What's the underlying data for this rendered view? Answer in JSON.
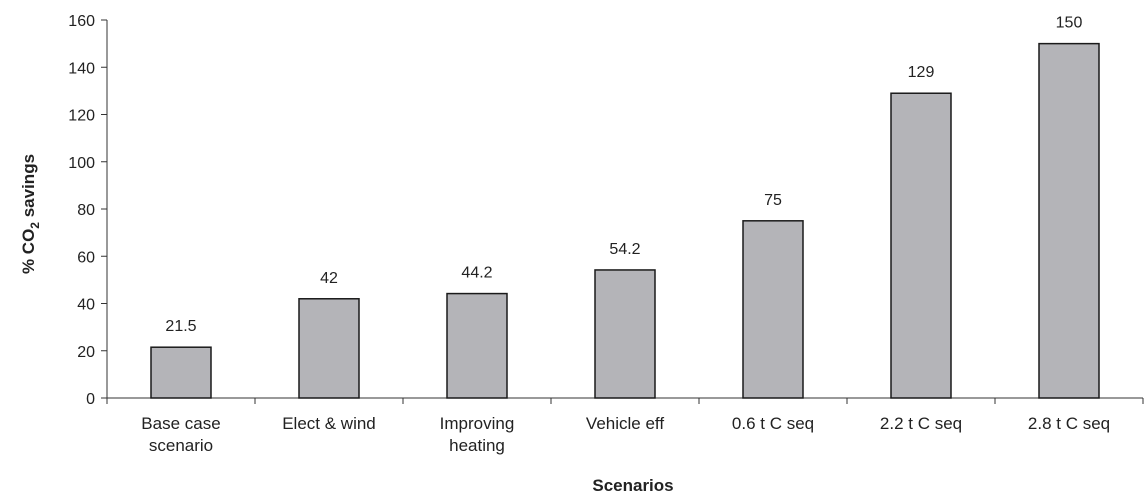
{
  "chart_data": {
    "type": "bar",
    "categories": [
      [
        "Base case",
        "scenario"
      ],
      [
        "Elect & wind"
      ],
      [
        "Improving",
        "heating"
      ],
      [
        "Vehicle eff"
      ],
      [
        "0.6 t C seq"
      ],
      [
        "2.2 t C seq"
      ],
      [
        "2.8 t C seq"
      ]
    ],
    "values": [
      21.5,
      42,
      44.2,
      54.2,
      75,
      129,
      150
    ],
    "value_labels": [
      "21.5",
      "42",
      "44.2",
      "54.2",
      "75",
      "129",
      "150"
    ],
    "title": "",
    "xlabel": "Scenarios",
    "ylabel": {
      "prefix": "% CO",
      "subscript": "2",
      "suffix": " savings"
    },
    "ylim": [
      0,
      160
    ],
    "yticks": [
      0,
      20,
      40,
      60,
      80,
      100,
      120,
      140,
      160
    ],
    "grid": false,
    "legend": "none",
    "colors": {
      "bar_fill": "#b4b4b8",
      "bar_stroke": "#1a1a1a",
      "axis": "#333333"
    }
  }
}
